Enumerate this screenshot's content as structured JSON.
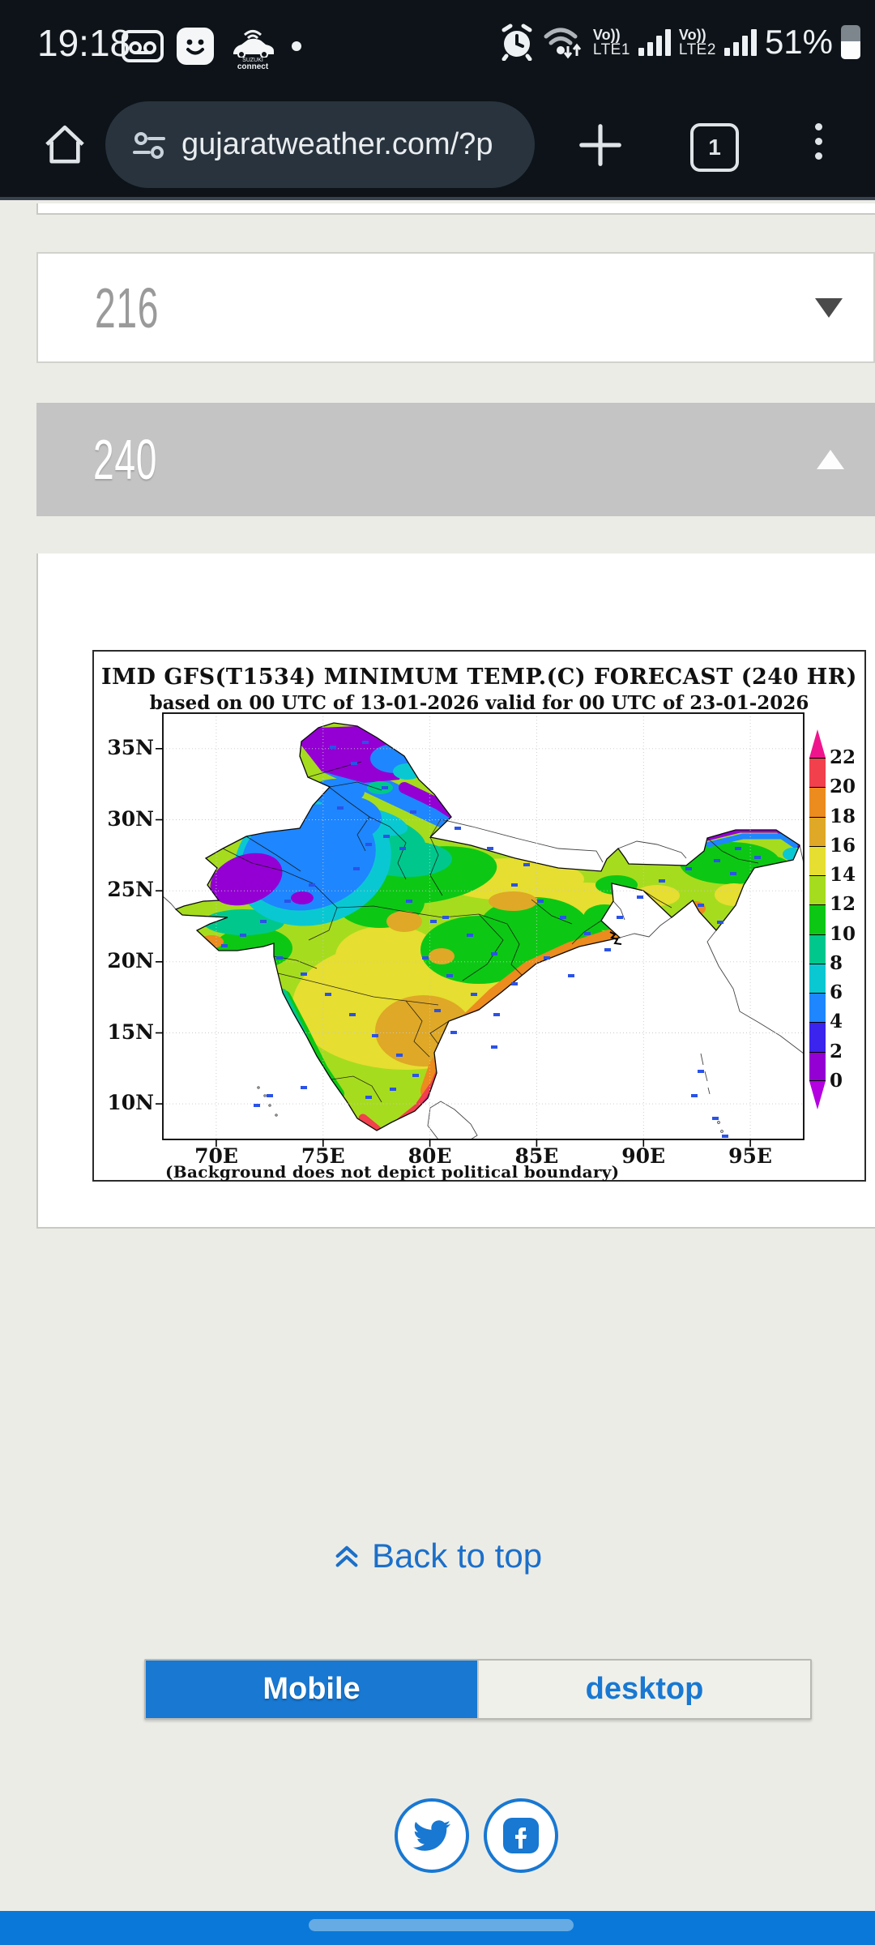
{
  "status_bar": {
    "time": "19:18",
    "battery_pct": "51%",
    "sim1_volte": "Vo))",
    "sim1_net": "LTE1",
    "sim2_volte": "Vo))",
    "sim2_net": "LTE2",
    "car_brand": "SUZUKI",
    "car_label": "connect"
  },
  "browser": {
    "url": "gujaratweather.com/?p",
    "tab_count": "1"
  },
  "accordion": {
    "collapsed_label": "216",
    "expanded_label": "240"
  },
  "chart_data": {
    "type": "heatmap",
    "title": "IMD GFS(T1534) MINIMUM TEMP.(C) FORECAST (240 HR)",
    "subtitle": "based on 00 UTC of 13-01-2026 valid for 00 UTC of 23-01-2026",
    "footnote": "(Background does not depict political boundary)",
    "x_ticks": [
      "70E",
      "75E",
      "80E",
      "85E",
      "90E",
      "95E"
    ],
    "y_ticks": [
      "35N",
      "30N",
      "25N",
      "20N",
      "15N",
      "10N"
    ],
    "xlim": [
      "67.5E",
      "97.5E"
    ],
    "ylim": [
      "7.5N",
      "37.5N"
    ],
    "grid": "dotted",
    "legend_position": "right",
    "colorbar": {
      "boundary_labels": [
        "22",
        "20",
        "18",
        "16",
        "14",
        "12",
        "10",
        "8",
        "6",
        "4",
        "2",
        "0"
      ],
      "colors_bottom_to_top": [
        "#9400d3",
        "#3a24ee",
        "#1e86ff",
        "#0ac8d2",
        "#00c88c",
        "#0cc814",
        "#a6dc1e",
        "#e6de30",
        "#dfa826",
        "#ec8b1e",
        "#f2404c"
      ],
      "below_color": "#b400e0",
      "above_color": "#f0148c"
    },
    "region_summary": "0-6C over NW Rajasthan and Himalayan belt (purple/blue), 8-12C north plains (cyan/teal/green), 12-16C central India (yellow-green/yellow), 16-20C Deccan and east coast (gold/orange), 20-22C+ far southern coastal strip (red/magenta); areas outside India unshaded"
  },
  "footer": {
    "back_to_top": "Back to top",
    "mobile_label": "Mobile",
    "desktop_label": "desktop"
  },
  "colors": {
    "accent_blue": "#1878d2",
    "bottom_bar_blue": "#0a78d8",
    "expanded_header_gray": "#c4c4c4"
  }
}
